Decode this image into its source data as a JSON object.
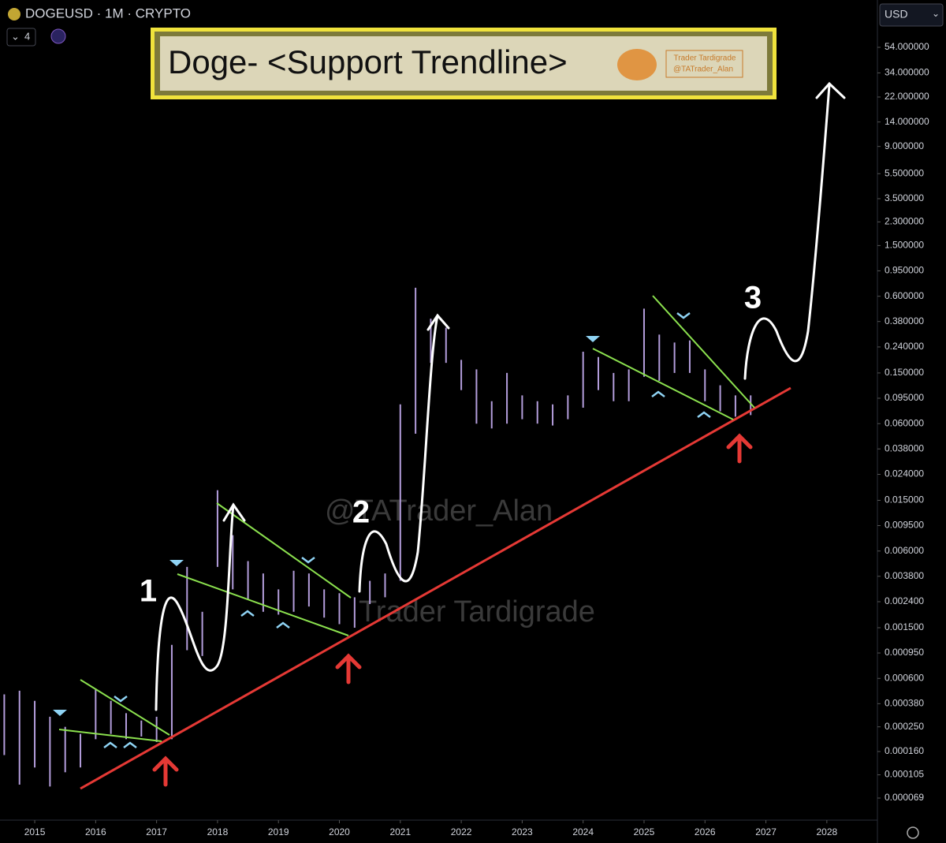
{
  "header": {
    "symbol": "DOGEUSD · 1M · CRYPTO",
    "indicator_count": "4",
    "currency": "USD"
  },
  "chart_data": {
    "type": "range_bar",
    "title": "Doge- <Support Trendline>",
    "badge": [
      "Trader Tardigrade",
      "@TATrader_Alan"
    ],
    "watermarks": [
      "@TATrader_Alan",
      "Trader Tardigrade"
    ],
    "annotations": [
      "1",
      "2",
      "3"
    ],
    "color": "#b39ddb",
    "log_scale": true,
    "x": [
      2014.5,
      2014.75,
      2015.0,
      2015.25,
      2015.5,
      2015.75,
      2016.0,
      2016.25,
      2016.5,
      2016.75,
      2017.0,
      2017.25,
      2017.5,
      2017.75,
      2018.0,
      2018.25,
      2018.5,
      2018.75,
      2019.0,
      2019.25,
      2019.5,
      2019.75,
      2020.0,
      2020.25,
      2020.5,
      2020.75,
      2021.0,
      2021.25,
      2021.5,
      2021.75,
      2022.0,
      2022.25,
      2022.5,
      2022.75,
      2023.0,
      2023.25,
      2023.5,
      2023.75,
      2024.0,
      2024.25,
      2024.5,
      2024.75,
      2025.0,
      2025.25,
      2025.5,
      2025.75,
      2026.0,
      2026.25,
      2026.5,
      2026.75
    ],
    "high": [
      0.00045,
      0.00048,
      0.0004,
      0.0003,
      0.00025,
      0.00022,
      0.0005,
      0.0004,
      0.00032,
      0.00028,
      0.0003,
      0.0011,
      0.0045,
      0.002,
      0.018,
      0.008,
      0.005,
      0.004,
      0.003,
      0.0042,
      0.004,
      0.003,
      0.0028,
      0.0026,
      0.0035,
      0.004,
      0.085,
      0.7,
      0.4,
      0.34,
      0.19,
      0.16,
      0.09,
      0.15,
      0.1,
      0.09,
      0.085,
      0.1,
      0.22,
      0.2,
      0.15,
      0.16,
      0.48,
      0.3,
      0.26,
      0.27,
      0.16,
      0.12,
      0.1,
      0.1
    ],
    "low": [
      0.00015,
      8.8e-05,
      0.00012,
      8.5e-05,
      0.00011,
      0.00012,
      0.0002,
      0.00022,
      0.0002,
      0.00021,
      0.00019,
      0.0002,
      0.001,
      0.0009,
      0.0045,
      0.003,
      0.0025,
      0.002,
      0.0019,
      0.002,
      0.0022,
      0.0018,
      0.0016,
      0.0015,
      0.0023,
      0.0026,
      0.0035,
      0.05,
      0.18,
      0.18,
      0.11,
      0.06,
      0.055,
      0.06,
      0.065,
      0.06,
      0.058,
      0.065,
      0.08,
      0.11,
      0.09,
      0.09,
      0.14,
      0.13,
      0.15,
      0.15,
      0.09,
      0.075,
      0.068,
      0.07
    ],
    "xlim": [
      2014.43,
      2028.83
    ],
    "xticks": [
      2015,
      2016,
      2017,
      2018,
      2019,
      2020,
      2021,
      2022,
      2023,
      2024,
      2025,
      2026,
      2027,
      2028
    ],
    "ylim": [
      4.63e-05,
      127
    ],
    "yticks": [
      {
        "value": 54,
        "label": "54.000000"
      },
      {
        "value": 34,
        "label": "34.000000"
      },
      {
        "value": 22,
        "label": "22.000000"
      },
      {
        "value": 14,
        "label": "14.000000"
      },
      {
        "value": 9,
        "label": "9.000000"
      },
      {
        "value": 5.5,
        "label": "5.500000"
      },
      {
        "value": 3.5,
        "label": "3.500000"
      },
      {
        "value": 2.3,
        "label": "2.300000"
      },
      {
        "value": 1.5,
        "label": "1.500000"
      },
      {
        "value": 0.95,
        "label": "0.950000"
      },
      {
        "value": 0.6,
        "label": "0.600000"
      },
      {
        "value": 0.38,
        "label": "0.380000"
      },
      {
        "value": 0.24,
        "label": "0.240000"
      },
      {
        "value": 0.15,
        "label": "0.150000"
      },
      {
        "value": 0.095,
        "label": "0.095000"
      },
      {
        "value": 0.06,
        "label": "0.060000"
      },
      {
        "value": 0.038,
        "label": "0.038000"
      },
      {
        "value": 0.024,
        "label": "0.024000"
      },
      {
        "value": 0.015,
        "label": "0.015000"
      },
      {
        "value": 0.0095,
        "label": "0.009500"
      },
      {
        "value": 0.006,
        "label": "0.006000"
      },
      {
        "value": 0.0038,
        "label": "0.003800"
      },
      {
        "value": 0.0024,
        "label": "0.002400"
      },
      {
        "value": 0.0015,
        "label": "0.001500"
      },
      {
        "value": 0.00095,
        "label": "0.000950"
      },
      {
        "value": 0.0006,
        "label": "0.000600"
      },
      {
        "value": 0.00038,
        "label": "0.000380"
      },
      {
        "value": 0.00025,
        "label": "0.000250"
      },
      {
        "value": 0.00016,
        "label": "0.000160"
      },
      {
        "value": 0.000105,
        "label": "0.000105"
      },
      {
        "value": 6.9e-05,
        "label": "0.000069"
      }
    ]
  }
}
